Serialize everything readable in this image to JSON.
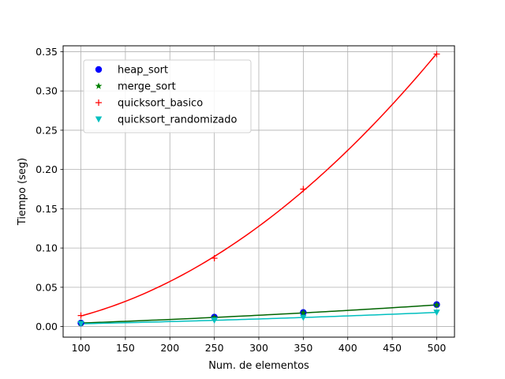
{
  "chart_data": {
    "type": "scatter",
    "title": "",
    "xlabel": "Num. de elementos",
    "ylabel": "Tiempo (seg)",
    "xlim": [
      80,
      520
    ],
    "ylim": [
      -0.0135,
      0.3575
    ],
    "xticks": [
      100,
      150,
      200,
      250,
      300,
      350,
      400,
      450,
      500
    ],
    "yticks": [
      0.0,
      0.05,
      0.1,
      0.15,
      0.2,
      0.25,
      0.3,
      0.35
    ],
    "ytick_labels": [
      "0.00",
      "0.05",
      "0.10",
      "0.15",
      "0.20",
      "0.25",
      "0.30",
      "0.35"
    ],
    "grid": true,
    "legend_position": "top-left",
    "x": [
      100,
      250,
      350,
      500
    ],
    "series": [
      {
        "name": "heap_sort",
        "marker": "circle",
        "color": "#0000ff",
        "values": [
          0.0045,
          0.012,
          0.018,
          0.028
        ],
        "fit_line": false
      },
      {
        "name": "merge_sort",
        "marker": "star",
        "color": "#008000",
        "values": [
          0.0045,
          0.0115,
          0.0175,
          0.0275
        ],
        "fit_line": true,
        "fit_color": "#006400"
      },
      {
        "name": "quicksort_basico",
        "marker": "plus",
        "color": "#ff0000",
        "values": [
          0.014,
          0.087,
          0.175,
          0.347
        ],
        "fit_line": true,
        "fit_color": "#ff0000"
      },
      {
        "name": "quicksort_randomizado",
        "marker": "triangle-down",
        "color": "#00bfbf",
        "values": [
          0.0035,
          0.008,
          0.0115,
          0.018
        ],
        "fit_line": true,
        "fit_color": "#00bfbf"
      }
    ]
  }
}
